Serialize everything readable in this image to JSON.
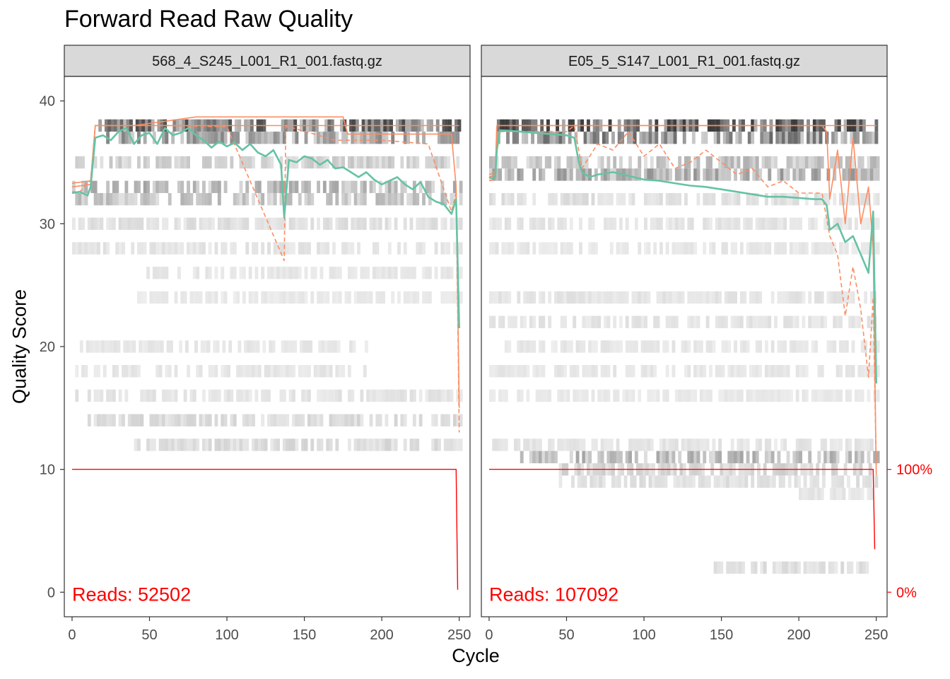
{
  "chart_data": {
    "type": "line",
    "title": "Forward Read Raw Quality",
    "xlabel": "Cycle",
    "ylabel": "Quality Score",
    "xlim": [
      -5,
      257
    ],
    "ylim": [
      -2,
      42
    ],
    "x_ticks": [
      0,
      50,
      100,
      150,
      200,
      250
    ],
    "y_ticks": [
      0,
      10,
      20,
      30,
      40
    ],
    "secondary_y_ticks": [
      "0%",
      "100%"
    ],
    "colors": {
      "mean": "#66c2a5",
      "quartile": "#fc8d62",
      "cumulative": "#ff0000",
      "strip": "#d9d9d9"
    },
    "panels": [
      {
        "name": "568_4_S245_L001_R1_001.fastq.gz",
        "reads_label": "Reads:",
        "reads_value": "52502",
        "mean": {
          "x": [
            0,
            5,
            10,
            12,
            15,
            20,
            25,
            30,
            35,
            40,
            45,
            50,
            55,
            60,
            65,
            70,
            75,
            80,
            85,
            90,
            95,
            100,
            105,
            110,
            115,
            120,
            125,
            130,
            135,
            137,
            140,
            145,
            150,
            155,
            160,
            165,
            170,
            175,
            180,
            185,
            190,
            195,
            200,
            205,
            210,
            215,
            220,
            225,
            230,
            235,
            240,
            245,
            248,
            250
          ],
          "y": [
            32.5,
            32.6,
            32.3,
            33,
            37,
            37.2,
            36.8,
            37.5,
            37.8,
            36.5,
            37.2,
            37.4,
            36.5,
            37.8,
            37.2,
            37.4,
            37.8,
            37.2,
            36.8,
            36.2,
            36.7,
            36.3,
            36.6,
            36,
            36.5,
            35.8,
            35.5,
            36,
            34.8,
            30.5,
            35.2,
            35,
            35.5,
            35.3,
            34.8,
            35.2,
            34.5,
            34.6,
            34.2,
            33.8,
            34.2,
            33.6,
            33.2,
            33.5,
            33.8,
            33.2,
            32.8,
            33.4,
            32.2,
            31.8,
            31.6,
            30.8,
            32,
            21.5
          ]
        },
        "q25": {
          "x": [
            0,
            5,
            10,
            12,
            15,
            30,
            60,
            100,
            137,
            138,
            140,
            170,
            200,
            230,
            245,
            248,
            250
          ],
          "y": [
            32.6,
            32.6,
            33.3,
            33.5,
            38,
            38,
            38,
            37.9,
            27,
            37.9,
            37.9,
            36.8,
            36.8,
            36.5,
            31,
            32.5,
            13
          ]
        },
        "q50": {
          "x": [
            0,
            12,
            15,
            40,
            80,
            140,
            175,
            178,
            210,
            245,
            248,
            250
          ],
          "y": [
            33,
            33.2,
            38,
            38,
            38.7,
            38.7,
            38.7,
            37.3,
            37.3,
            37.3,
            33,
            15
          ]
        },
        "q75": {
          "x": [
            0,
            12,
            15,
            250
          ],
          "y": [
            33.3,
            33.5,
            38,
            38
          ]
        },
        "cumulative_pct": {
          "x": [
            0,
            248,
            249
          ],
          "y": [
            100,
            100,
            2
          ]
        }
      },
      {
        "name": "E05_5_S147_L001_R1_001.fastq.gz",
        "reads_label": "Reads:",
        "reads_value": "107092",
        "mean": {
          "x": [
            0,
            2,
            4,
            5,
            7,
            10,
            20,
            30,
            40,
            50,
            55,
            58,
            60,
            65,
            70,
            80,
            90,
            100,
            110,
            120,
            130,
            140,
            150,
            160,
            170,
            180,
            190,
            200,
            210,
            215,
            218,
            220,
            225,
            230,
            235,
            240,
            245,
            248,
            250
          ],
          "y": [
            33.8,
            33.7,
            33.8,
            36,
            37.6,
            37.6,
            37.5,
            37.4,
            37.3,
            37.2,
            37,
            35,
            34.2,
            33.8,
            34,
            34.2,
            33.9,
            33.6,
            33.5,
            33.3,
            33.1,
            33,
            32.8,
            32.6,
            32.4,
            32.2,
            32.2,
            32.1,
            32,
            32,
            31.5,
            29.5,
            30,
            28.5,
            29,
            27.5,
            26,
            31,
            17
          ]
        },
        "q25": {
          "x": [
            0,
            4,
            5,
            10,
            50,
            55,
            60,
            70,
            80,
            90,
            100,
            110,
            120,
            130,
            140,
            150,
            160,
            170,
            180,
            190,
            200,
            210,
            215,
            220,
            225,
            230,
            235,
            240,
            245,
            248,
            250
          ],
          "y": [
            33.5,
            33.6,
            37.5,
            37.5,
            37.5,
            38,
            34.5,
            36.5,
            36,
            37.5,
            35.5,
            36.5,
            34.5,
            35,
            36,
            35,
            34,
            34.5,
            33,
            33.5,
            32.5,
            32.5,
            32.5,
            29,
            27.5,
            22.5,
            26.5,
            23,
            17.5,
            24,
            10
          ]
        },
        "q50": {
          "x": [
            0,
            4,
            5,
            215,
            218,
            220,
            225,
            230,
            235,
            240,
            245,
            248,
            250
          ],
          "y": [
            33.8,
            34,
            38,
            38,
            37.5,
            32,
            36,
            30,
            37,
            30,
            33,
            28,
            9.5
          ]
        },
        "q75": {
          "x": [
            0,
            4,
            5,
            250
          ],
          "y": [
            34,
            34.2,
            38,
            38
          ]
        },
        "cumulative_pct": {
          "x": [
            0,
            248,
            249
          ],
          "y": [
            100,
            100,
            35
          ]
        }
      }
    ]
  }
}
